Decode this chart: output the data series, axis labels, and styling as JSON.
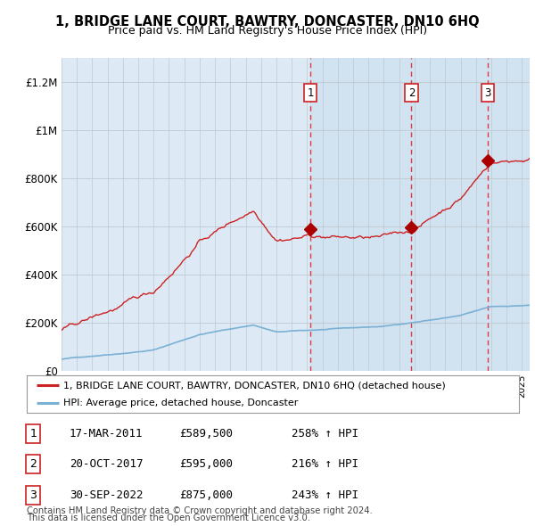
{
  "title": "1, BRIDGE LANE COURT, BAWTRY, DONCASTER, DN10 6HQ",
  "subtitle": "Price paid vs. HM Land Registry's House Price Index (HPI)",
  "hpi_color": "#7ab0d4",
  "price_color": "#cc2222",
  "marker_color": "#aa0000",
  "background_plot": "#ddeaf5",
  "background_fig": "#ffffff",
  "shade_color": "#ccdff0",
  "dashed_color": "#dd3333",
  "ylabel_ticks": [
    "£0",
    "£200K",
    "£400K",
    "£600K",
    "£800K",
    "£1M",
    "£1.2M"
  ],
  "ytick_vals": [
    0,
    200000,
    400000,
    600000,
    800000,
    1000000,
    1200000
  ],
  "ylim": [
    0,
    1300000
  ],
  "xlim_start": 1995.0,
  "xlim_end": 2025.5,
  "transactions": [
    {
      "label": "1",
      "year": 2011.21,
      "price": 589500,
      "date": "17-MAR-2011",
      "pct": "258%",
      "dir": "↑"
    },
    {
      "label": "2",
      "year": 2017.8,
      "price": 595000,
      "date": "20-OCT-2017",
      "pct": "216%",
      "dir": "↑"
    },
    {
      "label": "3",
      "year": 2022.75,
      "price": 875000,
      "date": "30-SEP-2022",
      "pct": "243%",
      "dir": "↑"
    }
  ],
  "legend_label_price": "1, BRIDGE LANE COURT, BAWTRY, DONCASTER, DN10 6HQ (detached house)",
  "legend_label_hpi": "HPI: Average price, detached house, Doncaster",
  "footer1": "Contains HM Land Registry data © Crown copyright and database right 2024.",
  "footer2": "This data is licensed under the Open Government Licence v3.0."
}
